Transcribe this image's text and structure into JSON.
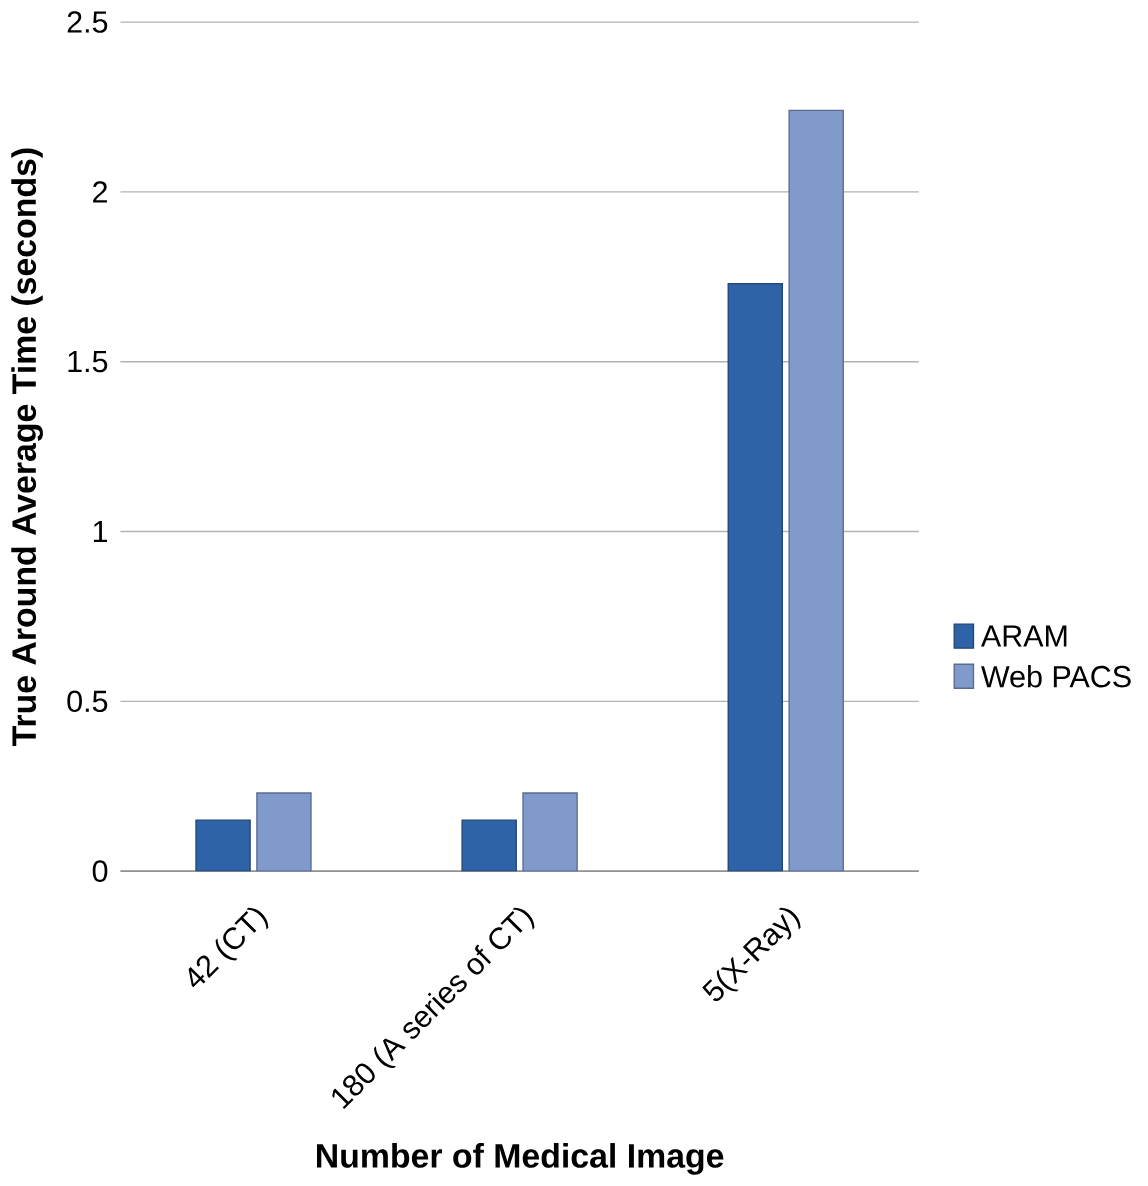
{
  "chart_data": {
    "type": "bar",
    "xlabel": "Number of Medical Image",
    "ylabel": "True Around Average Time (seconds)",
    "categories": [
      "42 (CT)",
      "180 (A series of CT)",
      "5(X-Ray)"
    ],
    "series": [
      {
        "name": "ARAM",
        "color": "#2e63a8",
        "values": [
          0.15,
          0.15,
          1.73
        ]
      },
      {
        "name": "Web PACS",
        "color": "#7f9acb",
        "values": [
          0.23,
          0.23,
          2.24
        ]
      }
    ],
    "ylim": [
      0,
      2.5
    ],
    "yticks": [
      0,
      0.5,
      1,
      1.5,
      2,
      2.5
    ],
    "grid": "y",
    "legend": "right"
  }
}
